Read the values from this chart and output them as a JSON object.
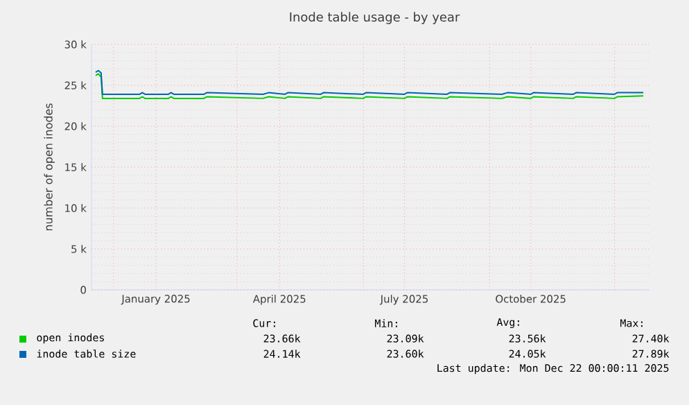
{
  "chart_data": {
    "type": "line",
    "title": "Inode table usage - by year",
    "ylabel": "number of open inodes",
    "x": [
      "2024-11-18",
      "2024-11-20",
      "2024-11-22",
      "2024-11-23",
      "2024-12-20",
      "2024-12-22",
      "2024-12-24",
      "2025-01-10",
      "2025-01-12",
      "2025-01-14",
      "2025-02-05",
      "2025-02-07",
      "2025-03-20",
      "2025-03-24",
      "2025-04-05",
      "2025-04-07",
      "2025-05-01",
      "2025-05-03",
      "2025-06-01",
      "2025-06-03",
      "2025-07-01",
      "2025-07-03",
      "2025-08-01",
      "2025-08-03",
      "2025-09-10",
      "2025-09-14",
      "2025-10-01",
      "2025-10-03",
      "2025-11-01",
      "2025-11-03",
      "2025-12-01",
      "2025-12-03",
      "2025-12-22"
    ],
    "series": [
      {
        "name": "open inodes",
        "color": "#00cc00",
        "values": [
          26.2,
          26.4,
          26.0,
          23.4,
          23.4,
          23.6,
          23.4,
          23.4,
          23.6,
          23.4,
          23.4,
          23.6,
          23.4,
          23.6,
          23.4,
          23.6,
          23.4,
          23.6,
          23.4,
          23.6,
          23.4,
          23.6,
          23.4,
          23.6,
          23.4,
          23.6,
          23.4,
          23.6,
          23.4,
          23.6,
          23.4,
          23.6,
          23.7
        ]
      },
      {
        "name": "inode table size",
        "color": "#0066b3",
        "values": [
          26.6,
          26.8,
          26.5,
          23.9,
          23.9,
          24.1,
          23.9,
          23.9,
          24.1,
          23.9,
          23.9,
          24.1,
          23.9,
          24.1,
          23.9,
          24.1,
          23.9,
          24.1,
          23.9,
          24.1,
          23.9,
          24.1,
          23.9,
          24.1,
          23.9,
          24.1,
          23.9,
          24.1,
          23.9,
          24.1,
          23.9,
          24.1,
          24.1
        ]
      }
    ],
    "xlim": [
      "2024-11-15",
      "2025-12-26"
    ],
    "xticks": [
      {
        "value": "2024-12-01",
        "label": null
      },
      {
        "value": "2025-01-01",
        "label": "January 2025"
      },
      {
        "value": "2025-03-01",
        "label": null
      },
      {
        "value": "2025-04-01",
        "label": "April 2025"
      },
      {
        "value": "2025-06-01",
        "label": null
      },
      {
        "value": "2025-07-01",
        "label": "July 2025"
      },
      {
        "value": "2025-09-01",
        "label": null
      },
      {
        "value": "2025-10-01",
        "label": "October 2025"
      },
      {
        "value": "2025-12-01",
        "label": null
      }
    ],
    "ylim": [
      0,
      30
    ],
    "yticks": [
      {
        "value": 0,
        "label": "0"
      },
      {
        "value": 5,
        "label": "5 k"
      },
      {
        "value": 10,
        "label": "10 k"
      },
      {
        "value": 15,
        "label": "15 k"
      },
      {
        "value": 20,
        "label": "20 k"
      },
      {
        "value": 25,
        "label": "25 k"
      },
      {
        "value": 30,
        "label": "30 k"
      }
    ],
    "grid": true,
    "legend": "bottom",
    "annotations": [
      "Cur:",
      "Min:",
      "Avg:",
      "Max:",
      "23.66k",
      "23.09k",
      "23.56k",
      "27.40k",
      "24.14k",
      "23.60k",
      "24.05k",
      "27.89k",
      "Last update: Mon Dec 22 00:00:11 2025"
    ]
  }
}
